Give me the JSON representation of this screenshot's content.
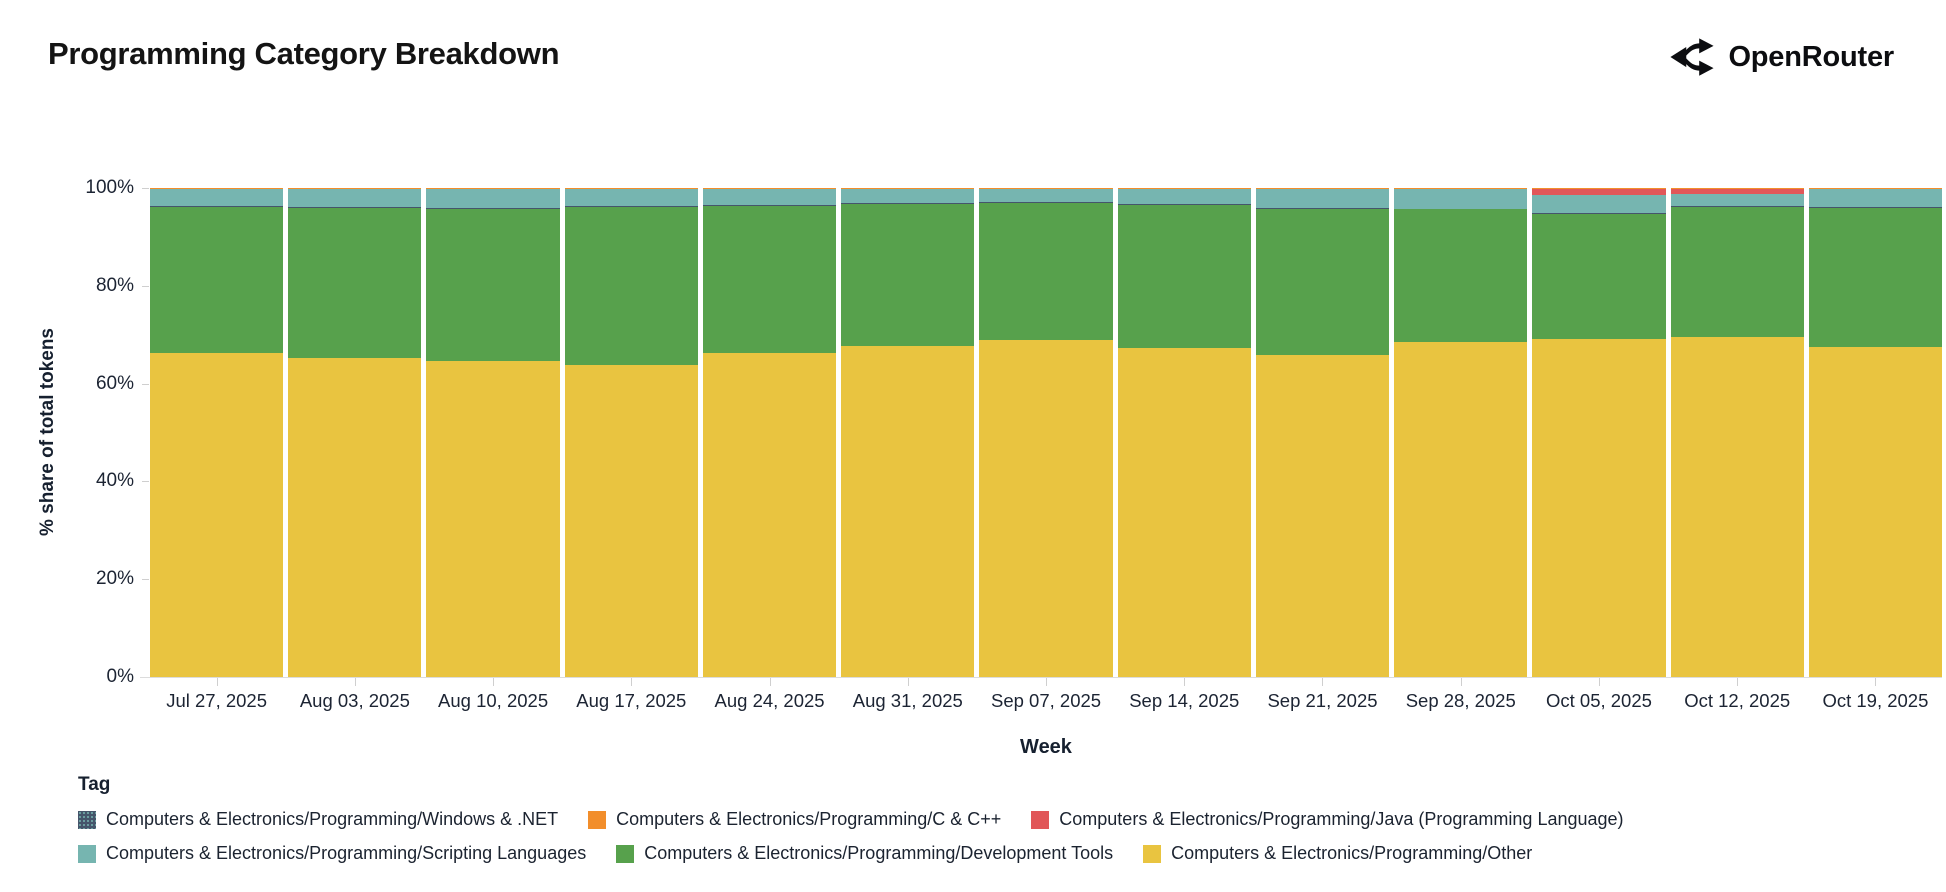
{
  "header": {
    "title": "Programming Category Breakdown",
    "brand": "OpenRouter"
  },
  "chart_data": {
    "type": "bar",
    "stacked": true,
    "normalized_percent": true,
    "title": "Programming Category Breakdown",
    "xlabel": "Week",
    "ylabel": "% share of total tokens",
    "ylim": [
      0,
      100
    ],
    "y_ticks": [
      "0%",
      "20%",
      "40%",
      "60%",
      "80%",
      "100%"
    ],
    "grid": false,
    "legend_position": "bottom",
    "categories": [
      "Jul 27, 2025",
      "Aug 03, 2025",
      "Aug 10, 2025",
      "Aug 17, 2025",
      "Aug 24, 2025",
      "Aug 31, 2025",
      "Sep 07, 2025",
      "Sep 14, 2025",
      "Sep 21, 2025",
      "Sep 28, 2025",
      "Oct 05, 2025",
      "Oct 12, 2025",
      "Oct 19, 2025"
    ],
    "series": [
      {
        "key": "other",
        "name": "Computers & Electronics/Programming/Other",
        "color": "#e9c440",
        "values": [
          66.3,
          65.2,
          64.7,
          63.7,
          66.3,
          67.7,
          69.0,
          67.2,
          65.8,
          68.5,
          69.2,
          69.5,
          67.5
        ]
      },
      {
        "key": "development-tools",
        "name": "Computers & Electronics/Programming/Development Tools",
        "color": "#57a14c",
        "values": [
          29.8,
          30.7,
          31.1,
          32.4,
          30.0,
          29.0,
          27.9,
          29.3,
          30.0,
          27.1,
          25.4,
          26.7,
          28.5
        ]
      },
      {
        "key": "windows-dotnet",
        "name": "Computers & Electronics/Programming/Windows & .NET",
        "color": "#45556b",
        "pattern": "dots",
        "values": [
          0.2,
          0.2,
          0.2,
          0.2,
          0.2,
          0.2,
          0.2,
          0.2,
          0.2,
          0.2,
          0.2,
          0.2,
          0.2
        ]
      },
      {
        "key": "scripting-languages",
        "name": "Computers & Electronics/Programming/Scripting Languages",
        "color": "#76b5b0",
        "values": [
          3.4,
          3.6,
          3.7,
          3.4,
          3.2,
          2.8,
          2.6,
          3.0,
          3.7,
          3.9,
          3.8,
          2.4,
          3.5
        ]
      },
      {
        "key": "java",
        "name": "Computers & Electronics/Programming/Java (Programming Language)",
        "color": "#e15759",
        "values": [
          0,
          0,
          0,
          0,
          0,
          0,
          0,
          0,
          0,
          0,
          1.1,
          0.9,
          0
        ]
      },
      {
        "key": "c-cpp",
        "name": "Computers & Electronics/Programming/C & C++",
        "color": "#f28e2b",
        "values": [
          0.3,
          0.3,
          0.3,
          0.3,
          0.3,
          0.3,
          0.3,
          0.3,
          0.3,
          0.3,
          0.3,
          0.3,
          0.3
        ]
      }
    ]
  },
  "legend": {
    "title": "Tag",
    "rows": [
      [
        {
          "label": "Computers & Electronics/Programming/Windows & .NET",
          "color": "#45556b",
          "pattern": "dots"
        },
        {
          "label": "Computers & Electronics/Programming/C & C++",
          "color": "#f28e2b"
        },
        {
          "label": "Computers & Electronics/Programming/Java (Programming Language)",
          "color": "#e15759"
        }
      ],
      [
        {
          "label": "Computers & Electronics/Programming/Scripting Languages",
          "color": "#76b5b0"
        },
        {
          "label": "Computers & Electronics/Programming/Development Tools",
          "color": "#57a14c"
        },
        {
          "label": "Computers & Electronics/Programming/Other",
          "color": "#e9c440"
        }
      ]
    ]
  }
}
